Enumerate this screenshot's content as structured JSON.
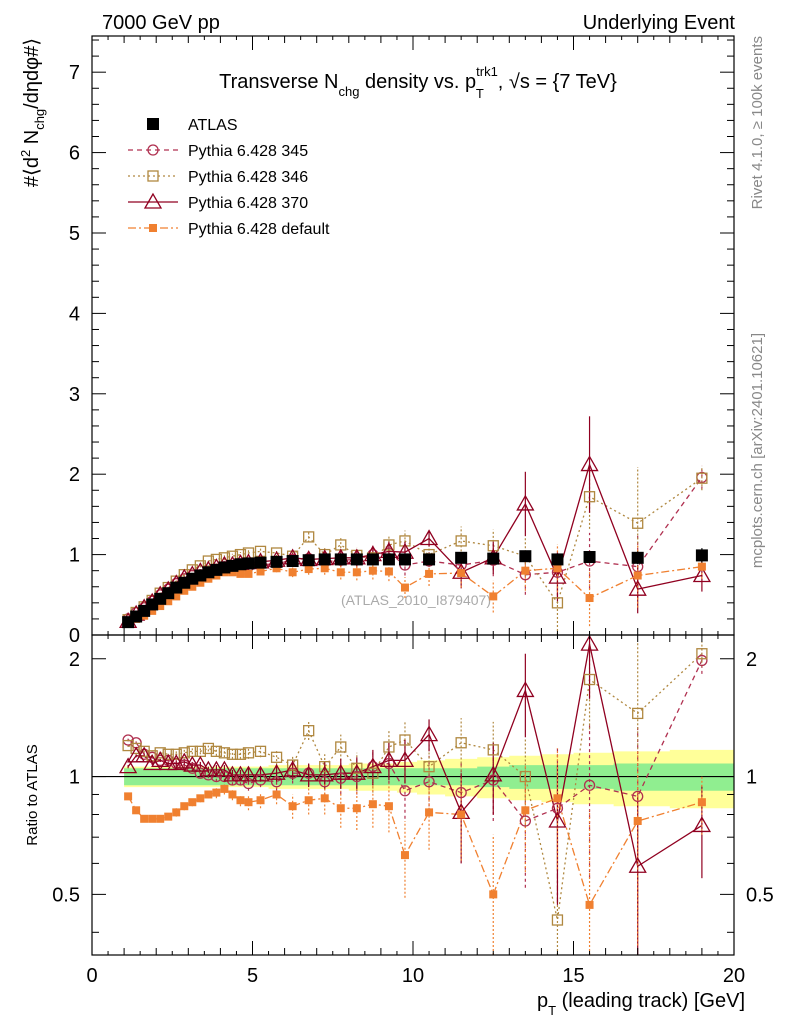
{
  "header": {
    "left": "7000 GeV pp",
    "right": "Underlying Event"
  },
  "side_labels": {
    "rivet": "Rivet 4.1.0, ≥ 100k events",
    "mcplots": "mcplots.cern.ch [arXiv:2401.10621]"
  },
  "colors": {
    "atlas": "#000000",
    "p345": "#b03050",
    "p346": "#b08840",
    "p370": "#900020",
    "pdef": "#f08030",
    "band_inner": "#90ee90",
    "band_outer": "#ffff99"
  },
  "chart_data": [
    {
      "type": "scatter",
      "panel": "main",
      "title": "Transverse N_chg density vs. p_T^trk1, √s = {7 TeV}",
      "title_parts": {
        "a": "Transverse N",
        "b": "chg",
        "c": " density vs. p",
        "d": "trk1",
        "e": "T",
        "f": ", √s = {7 TeV}"
      },
      "ylabel": "#⟨d² N_chg/dηdφ#⟩",
      "ylabel_parts": {
        "a": "#⟨d",
        "b": "2",
        "c": " N",
        "d": "chg",
        "e": "/dηdφ#⟩"
      },
      "xlim": [
        0,
        20
      ],
      "ylim": [
        0,
        7.45
      ],
      "y_ticks": [
        0,
        1,
        2,
        3,
        4,
        5,
        6,
        7
      ],
      "watermark": "(ATLAS_2010_I879407)",
      "legend": [
        "ATLAS",
        "Pythia 6.428 345",
        "Pythia 6.428 346",
        "Pythia 6.428 370",
        "Pythia 6.428 default"
      ],
      "x": [
        1.125,
        1.375,
        1.625,
        1.875,
        2.125,
        2.375,
        2.625,
        2.875,
        3.125,
        3.375,
        3.625,
        3.875,
        4.125,
        4.375,
        4.625,
        4.875,
        5.25,
        5.75,
        6.25,
        6.75,
        7.25,
        7.75,
        8.25,
        8.75,
        9.25,
        9.75,
        10.5,
        11.5,
        12.5,
        13.5,
        14.5,
        15.5,
        17.0,
        19.0
      ],
      "series": [
        {
          "name": "ATLAS",
          "key": "atlas",
          "values": [
            0.16,
            0.23,
            0.3,
            0.38,
            0.45,
            0.52,
            0.59,
            0.65,
            0.7,
            0.74,
            0.78,
            0.81,
            0.84,
            0.86,
            0.88,
            0.89,
            0.9,
            0.91,
            0.92,
            0.93,
            0.94,
            0.94,
            0.94,
            0.94,
            0.94,
            0.94,
            0.94,
            0.96,
            0.95,
            0.98,
            0.94,
            0.97,
            0.96,
            0.99
          ],
          "errors": [
            0.01,
            0.01,
            0.01,
            0.01,
            0.01,
            0.01,
            0.01,
            0.01,
            0.01,
            0.01,
            0.01,
            0.01,
            0.01,
            0.01,
            0.01,
            0.01,
            0.01,
            0.01,
            0.02,
            0.02,
            0.02,
            0.02,
            0.02,
            0.02,
            0.03,
            0.03,
            0.03,
            0.04,
            0.05,
            0.06,
            0.06,
            0.07,
            0.08,
            0.09
          ]
        },
        {
          "name": "Pythia 6.428 345",
          "key": "p345",
          "values": [
            0.2,
            0.28,
            0.34,
            0.42,
            0.5,
            0.57,
            0.64,
            0.7,
            0.74,
            0.75,
            0.79,
            0.82,
            0.85,
            0.84,
            0.86,
            0.85,
            0.88,
            0.88,
            0.94,
            0.95,
            0.91,
            0.93,
            0.94,
            1.0,
            1.02,
            0.87,
            0.92,
            0.87,
            0.93,
            0.75,
            0.78,
            0.92,
            0.85,
            1.96
          ],
          "errors": [
            0.01,
            0.01,
            0.01,
            0.01,
            0.01,
            0.01,
            0.01,
            0.02,
            0.02,
            0.02,
            0.02,
            0.02,
            0.03,
            0.03,
            0.03,
            0.04,
            0.04,
            0.05,
            0.06,
            0.07,
            0.08,
            0.09,
            0.1,
            0.11,
            0.12,
            0.13,
            0.15,
            0.18,
            0.2,
            0.25,
            0.3,
            0.35,
            0.4,
            0.15
          ]
        },
        {
          "name": "Pythia 6.428 346",
          "key": "p346",
          "values": [
            0.19,
            0.28,
            0.35,
            0.43,
            0.52,
            0.59,
            0.67,
            0.75,
            0.81,
            0.86,
            0.92,
            0.94,
            0.96,
            0.98,
            1.0,
            1.02,
            1.04,
            1.02,
            0.98,
            1.22,
            1.0,
            1.12,
            0.99,
            0.96,
            1.12,
            1.17,
            1.0,
            1.17,
            1.11,
            0.98,
            0.4,
            1.72,
            1.39,
            1.95
          ],
          "errors": [
            0.01,
            0.01,
            0.01,
            0.01,
            0.01,
            0.01,
            0.01,
            0.02,
            0.02,
            0.02,
            0.02,
            0.02,
            0.03,
            0.03,
            0.03,
            0.04,
            0.04,
            0.05,
            0.06,
            0.07,
            0.08,
            0.09,
            0.1,
            0.11,
            0.12,
            0.13,
            0.15,
            0.18,
            0.2,
            0.25,
            0.4,
            0.4,
            0.7,
            0.15
          ]
        },
        {
          "name": "Pythia 6.428 370",
          "key": "p370",
          "values": [
            0.17,
            0.26,
            0.34,
            0.41,
            0.5,
            0.56,
            0.64,
            0.71,
            0.75,
            0.79,
            0.81,
            0.84,
            0.87,
            0.87,
            0.89,
            0.9,
            0.91,
            0.93,
            0.96,
            0.94,
            0.95,
            0.96,
            0.96,
            1.0,
            1.04,
            1.03,
            1.2,
            0.78,
            0.96,
            1.63,
            0.72,
            2.12,
            0.57,
            0.74
          ],
          "errors": [
            0.01,
            0.01,
            0.01,
            0.01,
            0.01,
            0.01,
            0.01,
            0.02,
            0.02,
            0.02,
            0.02,
            0.02,
            0.03,
            0.03,
            0.03,
            0.04,
            0.04,
            0.05,
            0.06,
            0.07,
            0.08,
            0.09,
            0.1,
            0.11,
            0.12,
            0.13,
            0.1,
            0.2,
            0.2,
            0.4,
            0.3,
            0.6,
            0.3,
            0.2
          ]
        },
        {
          "name": "Pythia 6.428 default",
          "key": "pdef",
          "values": [
            0.15,
            0.2,
            0.24,
            0.3,
            0.36,
            0.42,
            0.48,
            0.55,
            0.6,
            0.65,
            0.7,
            0.74,
            0.78,
            0.78,
            0.76,
            0.76,
            0.79,
            0.83,
            0.78,
            0.82,
            0.83,
            0.78,
            0.78,
            0.8,
            0.79,
            0.59,
            0.76,
            0.77,
            0.48,
            0.8,
            0.83,
            0.46,
            0.74,
            0.85
          ],
          "errors": [
            0.01,
            0.01,
            0.01,
            0.01,
            0.01,
            0.01,
            0.01,
            0.02,
            0.02,
            0.02,
            0.02,
            0.02,
            0.03,
            0.03,
            0.03,
            0.04,
            0.04,
            0.05,
            0.06,
            0.07,
            0.08,
            0.09,
            0.1,
            0.11,
            0.12,
            0.13,
            0.15,
            0.18,
            0.2,
            0.25,
            0.3,
            0.35,
            0.4,
            0.15
          ]
        }
      ]
    },
    {
      "type": "scatter",
      "panel": "ratio",
      "ylabel": "Ratio to ATLAS",
      "xlabel": "p_T (leading track) [GeV]",
      "xlabel_parts": {
        "a": "p",
        "b": "T",
        "c": " (leading track) [GeV]"
      },
      "xlim": [
        0,
        20
      ],
      "ylim": [
        0.35,
        2.3
      ],
      "x_ticks": [
        0,
        5,
        10,
        15,
        20
      ],
      "y_ticks": [
        0.5,
        1,
        2
      ],
      "band_inner": [
        0.05,
        0.05,
        0.05,
        0.05,
        0.05,
        0.05,
        0.05,
        0.05,
        0.05,
        0.05,
        0.05,
        0.05,
        0.05,
        0.05,
        0.05,
        0.05,
        0.05,
        0.05,
        0.05,
        0.05,
        0.05,
        0.05,
        0.05,
        0.05,
        0.05,
        0.05,
        0.05,
        0.05,
        0.06,
        0.07,
        0.07,
        0.07,
        0.08,
        0.08
      ],
      "band_outer": [
        0.06,
        0.06,
        0.06,
        0.06,
        0.06,
        0.06,
        0.06,
        0.06,
        0.06,
        0.06,
        0.06,
        0.06,
        0.06,
        0.06,
        0.06,
        0.06,
        0.06,
        0.07,
        0.07,
        0.07,
        0.07,
        0.07,
        0.08,
        0.08,
        0.08,
        0.09,
        0.1,
        0.11,
        0.12,
        0.13,
        0.14,
        0.15,
        0.16,
        0.17
      ],
      "series": [
        {
          "name": "Pythia 6.428 345",
          "key": "p345",
          "values": [
            1.24,
            1.22,
            1.14,
            1.12,
            1.1,
            1.1,
            1.08,
            1.07,
            1.05,
            1.02,
            1.01,
            1.0,
            1.0,
            0.98,
            0.98,
            0.96,
            0.98,
            0.97,
            1.02,
            1.02,
            0.97,
            0.99,
            1.0,
            1.06,
            1.08,
            0.92,
            0.97,
            0.91,
            0.98,
            0.77,
            0.83,
            0.95,
            0.89,
            1.98
          ],
          "errors": [
            0.01,
            0.01,
            0.01,
            0.01,
            0.01,
            0.01,
            0.02,
            0.02,
            0.02,
            0.02,
            0.02,
            0.03,
            0.03,
            0.03,
            0.03,
            0.04,
            0.04,
            0.05,
            0.06,
            0.07,
            0.08,
            0.09,
            0.1,
            0.11,
            0.12,
            0.14,
            0.16,
            0.19,
            0.21,
            0.25,
            0.35,
            0.4,
            0.45,
            0.15
          ]
        },
        {
          "name": "Pythia 6.428 346",
          "key": "p346",
          "values": [
            1.2,
            1.18,
            1.16,
            1.13,
            1.15,
            1.14,
            1.14,
            1.15,
            1.16,
            1.16,
            1.18,
            1.16,
            1.15,
            1.14,
            1.14,
            1.15,
            1.16,
            1.12,
            1.07,
            1.31,
            1.06,
            1.19,
            1.05,
            1.02,
            1.19,
            1.24,
            1.06,
            1.22,
            1.17,
            1.0,
            0.43,
            1.77,
            1.45,
            2.06
          ],
          "errors": [
            0.01,
            0.01,
            0.01,
            0.01,
            0.01,
            0.01,
            0.02,
            0.02,
            0.02,
            0.02,
            0.02,
            0.03,
            0.03,
            0.03,
            0.03,
            0.04,
            0.04,
            0.05,
            0.06,
            0.07,
            0.08,
            0.09,
            0.1,
            0.11,
            0.12,
            0.14,
            0.16,
            0.19,
            0.21,
            0.25,
            0.45,
            0.45,
            0.75,
            0.15
          ]
        },
        {
          "name": "Pythia 6.428 370",
          "key": "p370",
          "values": [
            1.06,
            1.13,
            1.13,
            1.08,
            1.1,
            1.08,
            1.08,
            1.09,
            1.07,
            1.07,
            1.04,
            1.04,
            1.04,
            1.01,
            1.01,
            1.01,
            1.01,
            1.02,
            1.04,
            1.01,
            1.01,
            1.02,
            1.02,
            1.06,
            1.1,
            1.1,
            1.28,
            0.81,
            1.01,
            1.66,
            0.77,
            2.18,
            0.59,
            0.75
          ],
          "errors": [
            0.01,
            0.01,
            0.01,
            0.01,
            0.01,
            0.01,
            0.02,
            0.02,
            0.02,
            0.02,
            0.02,
            0.03,
            0.03,
            0.03,
            0.03,
            0.04,
            0.04,
            0.05,
            0.06,
            0.07,
            0.08,
            0.09,
            0.1,
            0.11,
            0.12,
            0.14,
            0.12,
            0.21,
            0.21,
            0.4,
            0.3,
            0.6,
            0.3,
            0.2
          ]
        },
        {
          "name": "Pythia 6.428 default",
          "key": "pdef",
          "values": [
            0.89,
            0.82,
            0.78,
            0.78,
            0.78,
            0.79,
            0.81,
            0.84,
            0.86,
            0.88,
            0.9,
            0.91,
            0.93,
            0.9,
            0.87,
            0.86,
            0.87,
            0.9,
            0.84,
            0.87,
            0.88,
            0.83,
            0.83,
            0.85,
            0.84,
            0.63,
            0.81,
            0.8,
            0.5,
            0.82,
            0.88,
            0.47,
            0.77,
            0.86
          ],
          "errors": [
            0.01,
            0.01,
            0.01,
            0.01,
            0.01,
            0.01,
            0.02,
            0.02,
            0.02,
            0.02,
            0.02,
            0.03,
            0.03,
            0.03,
            0.03,
            0.04,
            0.04,
            0.05,
            0.06,
            0.07,
            0.08,
            0.09,
            0.1,
            0.11,
            0.12,
            0.14,
            0.16,
            0.19,
            0.21,
            0.25,
            0.3,
            0.35,
            0.4,
            0.15
          ]
        }
      ]
    }
  ]
}
